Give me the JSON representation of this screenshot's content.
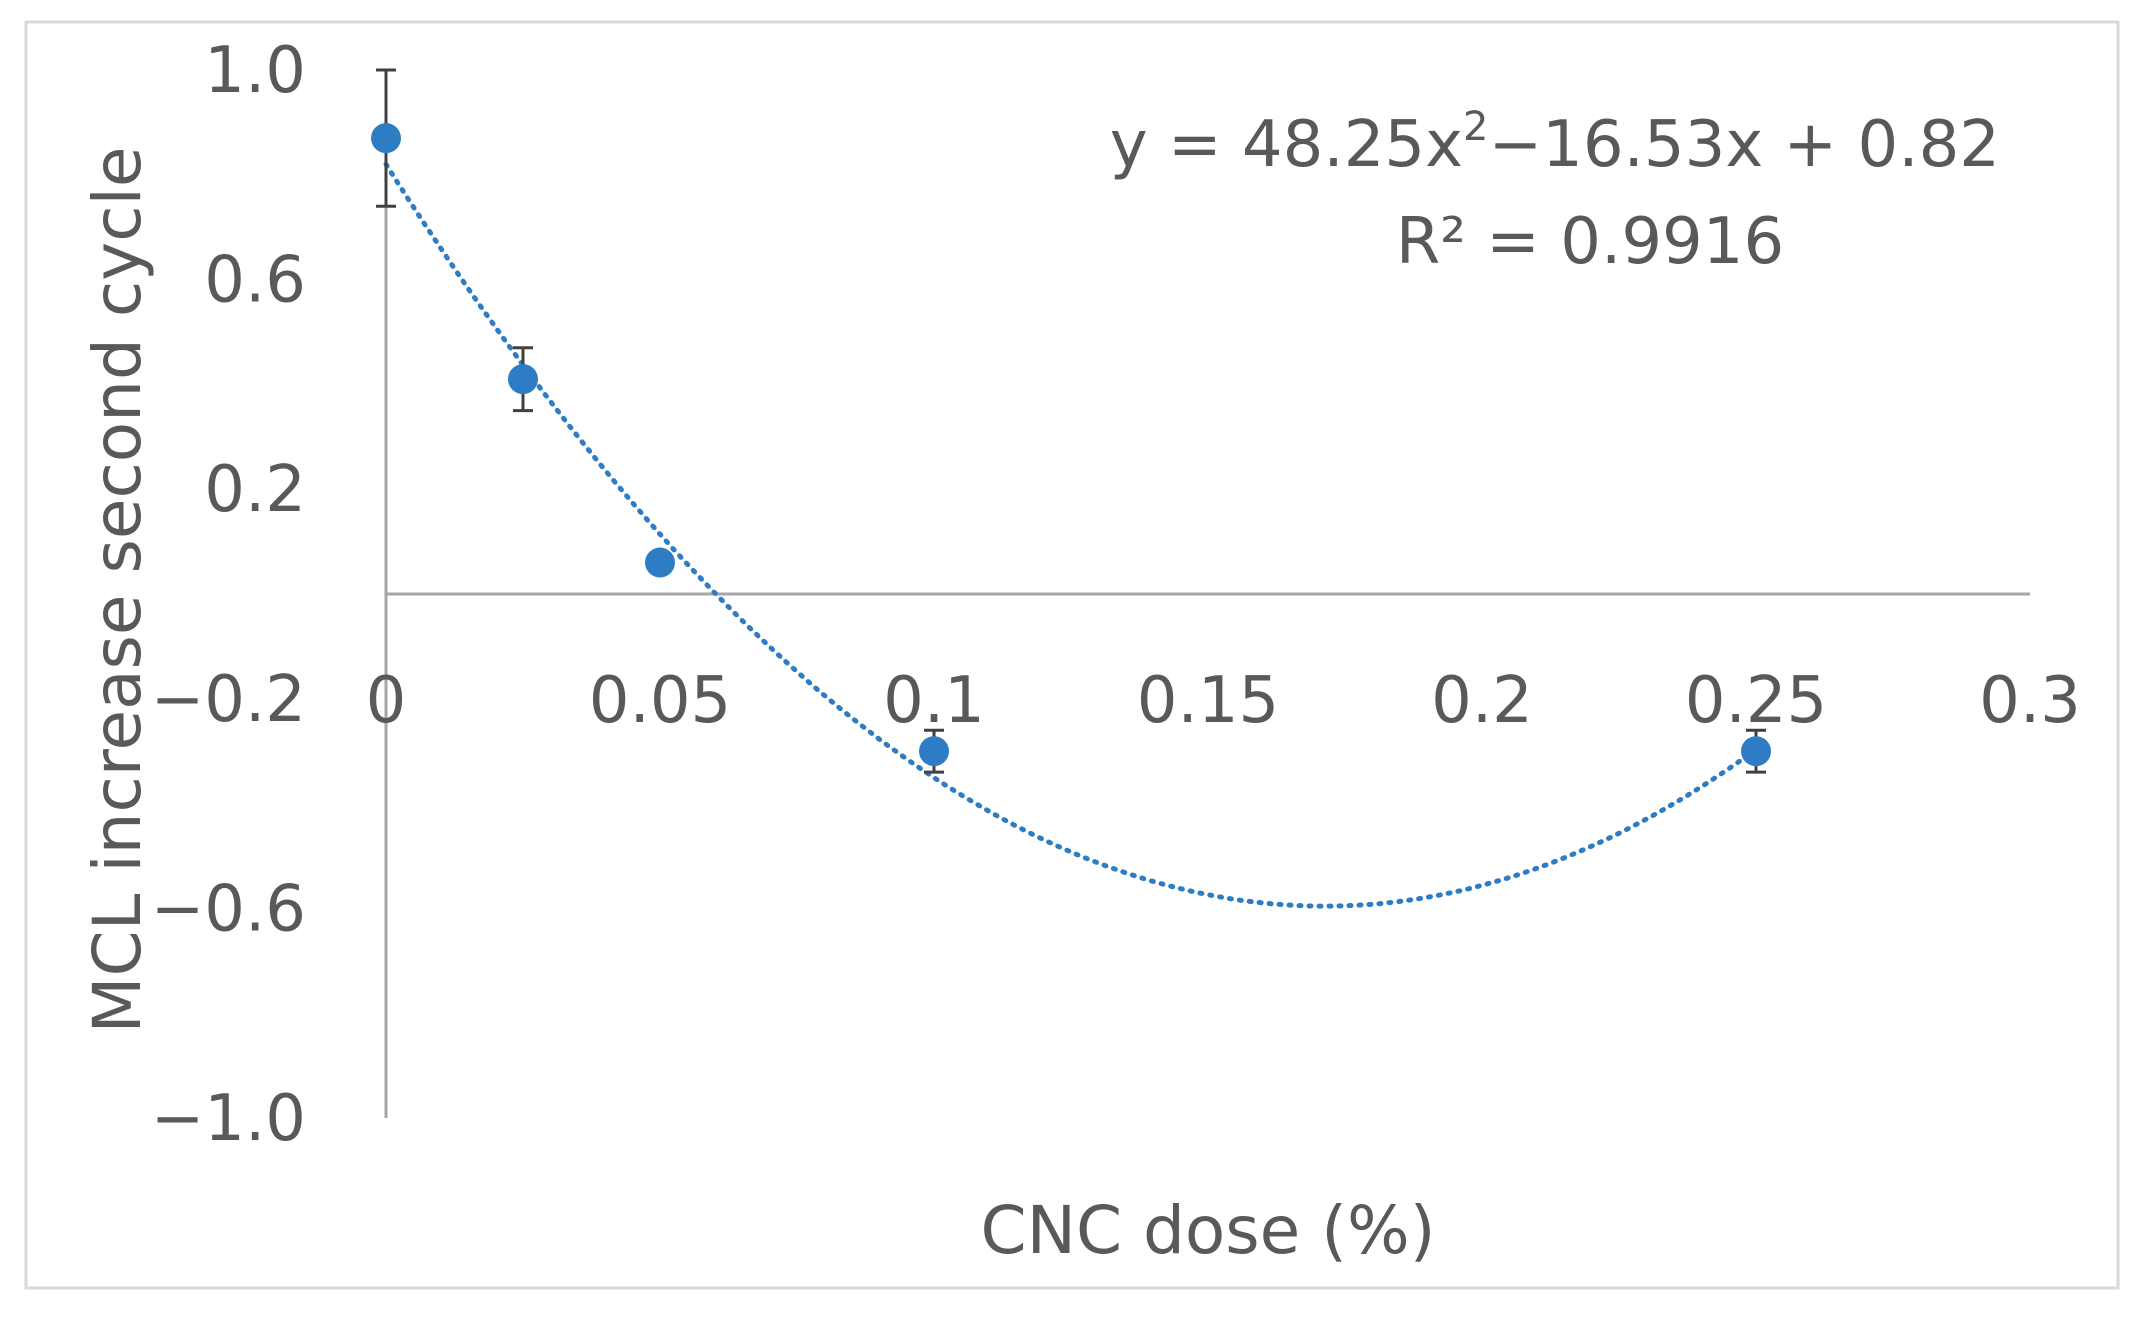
{
  "chart_data": {
    "type": "scatter",
    "title": "",
    "xlabel": "CNC dose (%)",
    "ylabel": "MCL increase second cycle",
    "xlim": [
      0,
      0.3
    ],
    "ylim": [
      -1.0,
      1.0
    ],
    "x_ticks": [
      {
        "value": 0,
        "label": "0"
      },
      {
        "value": 0.05,
        "label": "0.05"
      },
      {
        "value": 0.1,
        "label": "0.1"
      },
      {
        "value": 0.15,
        "label": "0.15"
      },
      {
        "value": 0.2,
        "label": "0.2"
      },
      {
        "value": 0.25,
        "label": "0.25"
      },
      {
        "value": 0.3,
        "label": "0.3"
      }
    ],
    "y_ticks": [
      {
        "value": 1.0,
        "label": "1.0"
      },
      {
        "value": 0.6,
        "label": "0.6"
      },
      {
        "value": 0.2,
        "label": "0.2"
      },
      {
        "value": -0.2,
        "label": "−0.2"
      },
      {
        "value": -0.6,
        "label": "−0.6"
      },
      {
        "value": -1.0,
        "label": "−1.0"
      }
    ],
    "grid": false,
    "legend": "none",
    "series": [
      {
        "x": [
          0,
          0.025,
          0.05,
          0.1,
          0.25
        ],
        "y": [
          0.87,
          0.41,
          0.06,
          -0.3,
          -0.3
        ],
        "err_low": [
          0.13,
          0.06,
          0.0,
          0.04,
          0.04
        ],
        "err_high": [
          0.13,
          0.06,
          0.0,
          0.04,
          0.04
        ],
        "color": "#2E7DC4"
      }
    ],
    "trendline": {
      "kind": "polynomial",
      "coefficients": [
        48.25,
        -16.53,
        0.82
      ],
      "color": "#2E7DC4",
      "style": "dotted"
    },
    "annotation": {
      "equation_prefix": "y = 48.25x",
      "equation_sup": "2",
      "equation_suffix": "−16.53x + 0.82",
      "r_squared": "R² = 0.9916"
    },
    "colors": {
      "axis": "#A6A6A6",
      "text": "#595959",
      "errorbar": "#404040",
      "frame": "#D9D9D9"
    }
  }
}
